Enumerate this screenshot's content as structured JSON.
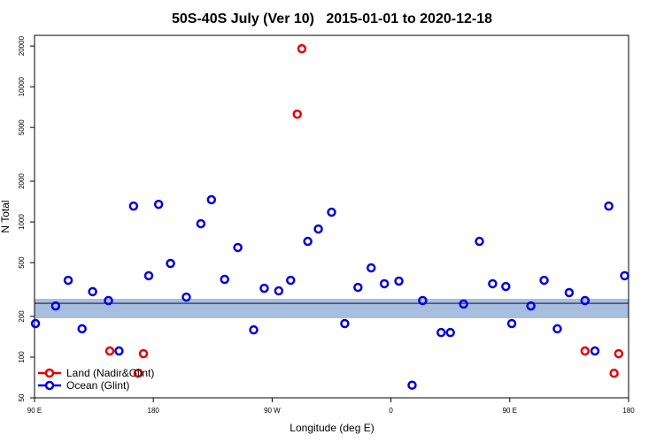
{
  "chart_data": {
    "type": "scatter",
    "title": "50S-40S July (Ver 10)   2015-01-01 to 2020-12-18",
    "x_label": "Longitude (deg E)",
    "y_label": "N Total",
    "log_y": true,
    "legend": "lower left",
    "xlim": [
      90,
      540
    ],
    "ylim": [
      50,
      24000
    ],
    "xticks": [
      {
        "value": 90,
        "label": "90 E"
      },
      180,
      {
        "value": 270,
        "label": "90 W"
      },
      {
        "value": 360,
        "label": "0"
      },
      {
        "value": 450,
        "label": "90 E"
      },
      {
        "value": 540,
        "label": "180"
      }
    ],
    "yticks": [
      50,
      100,
      200,
      500,
      1000,
      2000,
      5000,
      10000,
      20000
    ],
    "band": [
      194,
      270
    ],
    "band_color": "#a9bedf",
    "ref_line": 250,
    "ref_line_color": "#3a4f6a",
    "series": [
      {
        "name": "Land (Nadir&Glint)",
        "color": "#e80000",
        "x": [
          292.5,
          289,
          147,
          172.5,
          168.5,
          507,
          532.5,
          529
        ],
        "values": [
          19100,
          6270,
          111,
          106,
          76,
          111,
          106,
          76
        ]
      },
      {
        "name": "Ocean (Glint)",
        "color": "#0000e0",
        "x": [
          90.7,
          106,
          115.5,
          126,
          134,
          146,
          154,
          165,
          176.5,
          184,
          193,
          205,
          216,
          224,
          234,
          244,
          256,
          264,
          275,
          284,
          297,
          305,
          315,
          325,
          335,
          345,
          355,
          366,
          376,
          384,
          398,
          405,
          415,
          427,
          437,
          447,
          451.5,
          466,
          476,
          486,
          495,
          507,
          514.5,
          525,
          537
        ],
        "values": [
          177,
          239,
          370,
          162,
          305,
          262,
          111,
          1310,
          400,
          1350,
          493,
          278,
          970,
          1460,
          376,
          647,
          159,
          323,
          309,
          370,
          718,
          886,
          1180,
          177,
          328,
          457,
          349,
          365,
          62,
          262,
          152,
          152,
          247,
          718,
          349,
          333,
          177,
          239,
          370,
          162,
          300,
          262,
          111,
          1310,
          400
        ]
      }
    ]
  }
}
